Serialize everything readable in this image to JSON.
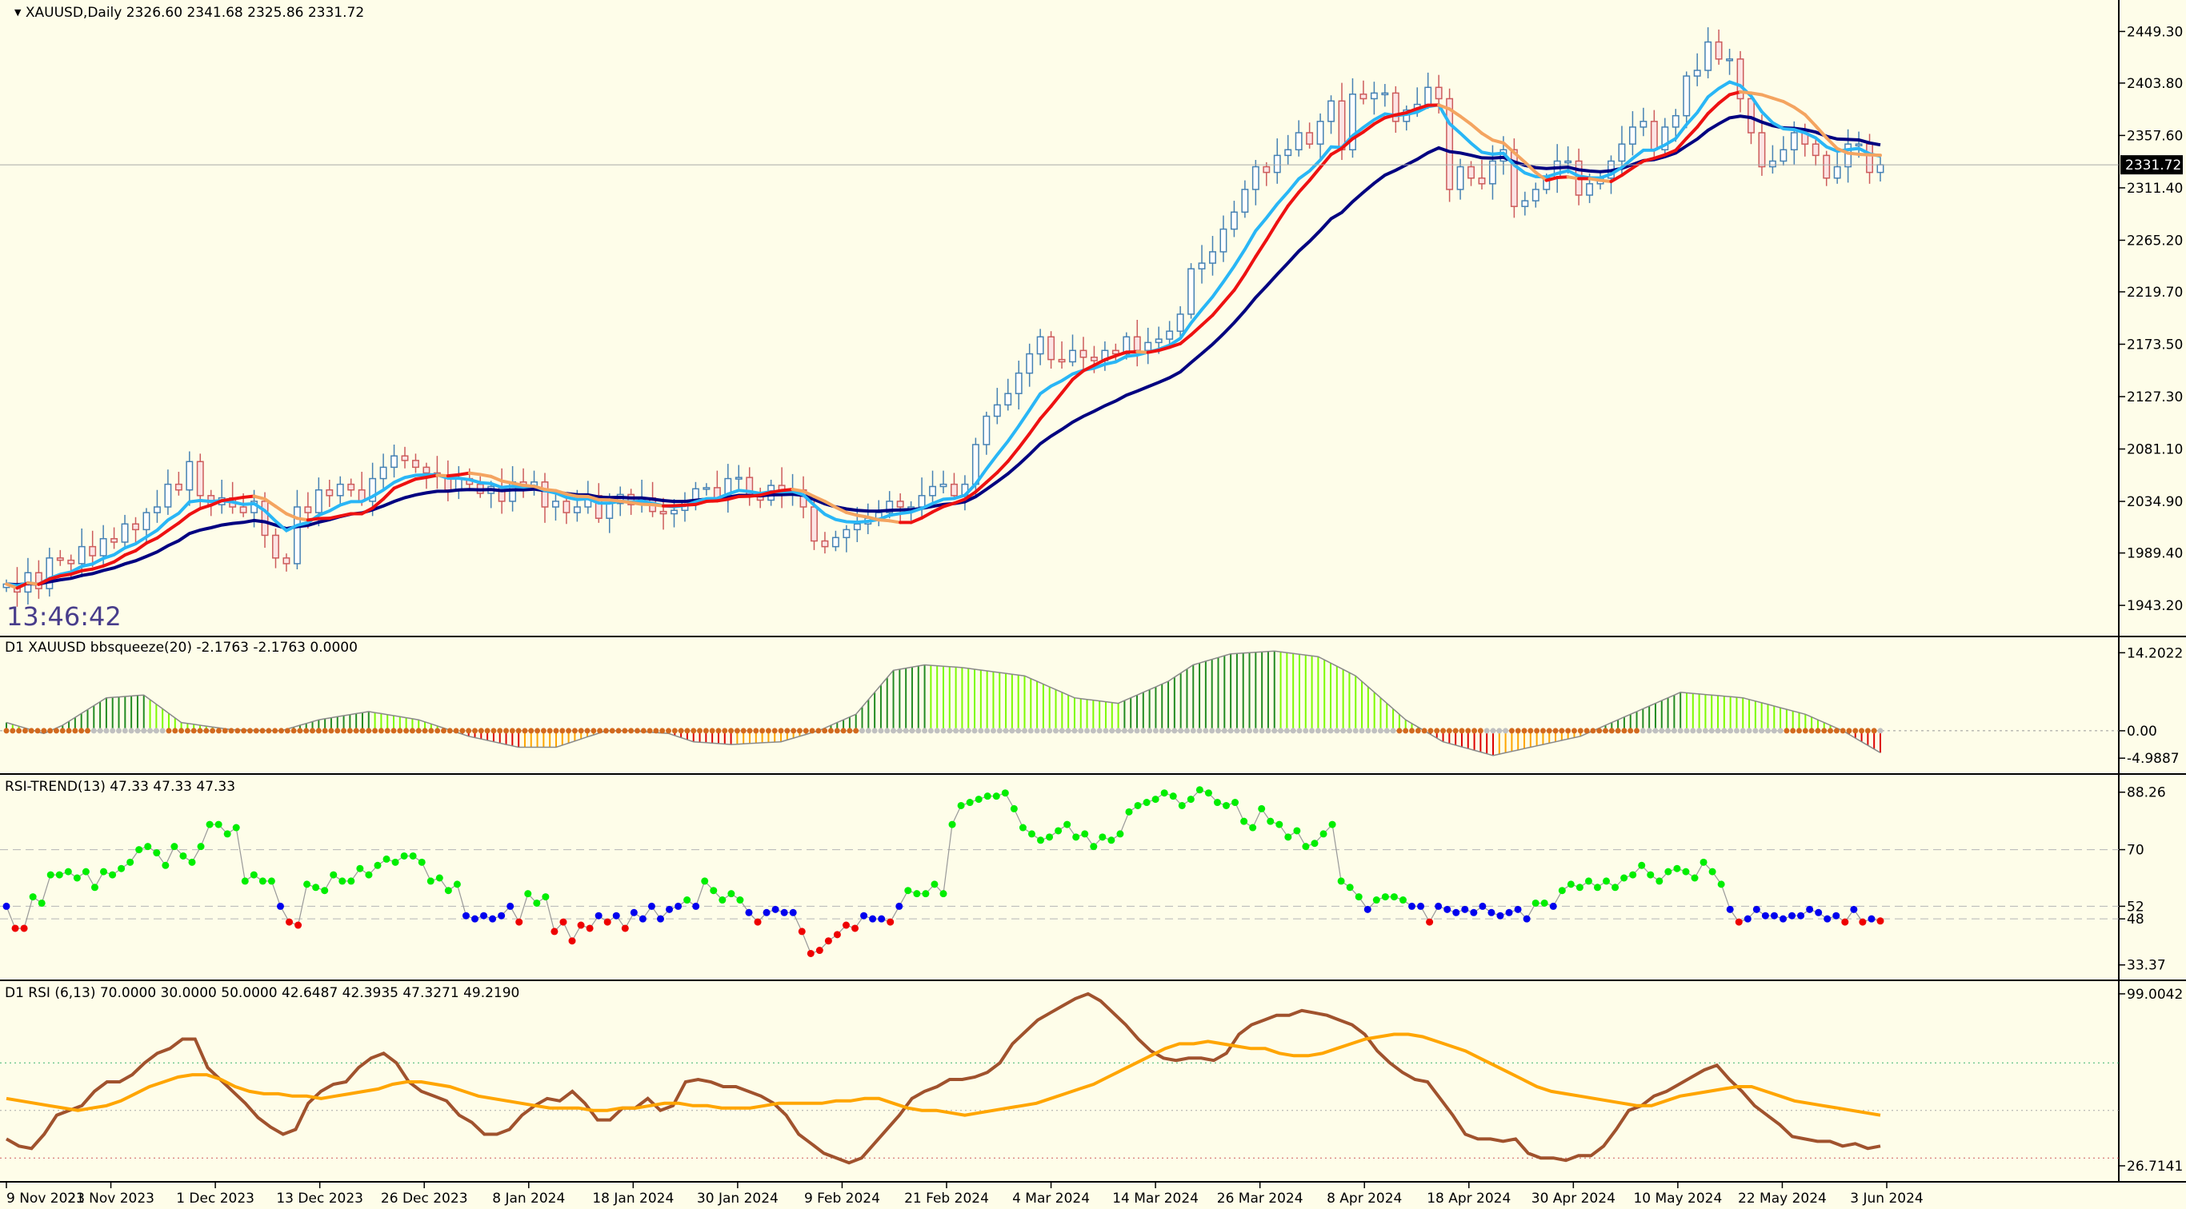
{
  "chart_data": [
    {
      "type": "candlestick",
      "panel": "price",
      "header": "XAUUSD,Daily  2326.60 2341.68 2325.86 2331.72",
      "symbol": "XAUUSD",
      "timeframe": "Daily",
      "ohlc_last": {
        "open": 2326.6,
        "high": 2341.68,
        "low": 2325.86,
        "close": 2331.72
      },
      "current_price_label": "2331.72",
      "clock": "13:46:42",
      "ylim": [
        1920,
        2470
      ],
      "y_ticks": [
        "2449.30",
        "2403.80",
        "2357.60",
        "2311.40",
        "2265.20",
        "2219.70",
        "2173.50",
        "2127.30",
        "2081.10",
        "2034.90",
        "1989.40",
        "1943.20"
      ],
      "closes": [
        1962,
        1955,
        1972,
        1958,
        1985,
        1983,
        1980,
        1995,
        1987,
        2002,
        1999,
        2015,
        2010,
        2025,
        2030,
        2050,
        2045,
        2070,
        2040,
        2032,
        2038,
        2030,
        2025,
        2035,
        2005,
        1985,
        1980,
        2030,
        2025,
        2045,
        2040,
        2050,
        2045,
        2035,
        2055,
        2065,
        2075,
        2071,
        2065,
        2060,
        2058,
        2045,
        2055,
        2050,
        2042,
        2048,
        2035,
        2052,
        2045,
        2052,
        2030,
        2035,
        2025,
        2030,
        2040,
        2020,
        2033,
        2041,
        2032,
        2038,
        2026,
        2024,
        2027,
        2035,
        2046,
        2047,
        2038,
        2055,
        2056,
        2040,
        2036,
        2049,
        2043,
        2045,
        2030,
        2000,
        1995,
        2003,
        2010,
        2015,
        2020,
        2025,
        2035,
        2030,
        2030,
        2040,
        2048,
        2050,
        2040,
        2050,
        2085,
        2110,
        2120,
        2130,
        2148,
        2165,
        2180,
        2160,
        2158,
        2168,
        2162,
        2159,
        2168,
        2165,
        2180,
        2168,
        2175,
        2178,
        2185,
        2200,
        2240,
        2245,
        2255,
        2275,
        2290,
        2310,
        2330,
        2325,
        2340,
        2345,
        2360,
        2350,
        2370,
        2388,
        2345,
        2394,
        2390,
        2395,
        2395,
        2370,
        2380,
        2385,
        2400,
        2390,
        2310,
        2330,
        2320,
        2315,
        2335,
        2345,
        2295,
        2300,
        2310,
        2320,
        2335,
        2335,
        2305,
        2315,
        2320,
        2335,
        2350,
        2365,
        2370,
        2345,
        2365,
        2375,
        2410,
        2415,
        2440,
        2425,
        2425,
        2390,
        2360,
        2330,
        2335,
        2345,
        2360,
        2350,
        2340,
        2320,
        2330,
        2350,
        2350,
        2325,
        2331.72
      ],
      "ema_fast_color": "#29b6f6",
      "ema_slow_color": "#000080",
      "ma_up_color": "#ee1111",
      "ma_down_color": "#f4a460",
      "bull_candle_color": "#4682b4",
      "bear_candle_color": "#cd5c5c"
    },
    {
      "type": "histogram",
      "panel": "bbsqueeze",
      "header": "D1 XAUUSD bbsqueeze(20) -2.1763 -2.1763 0.0000",
      "ylim": [
        -7,
        16
      ],
      "y_ticks": [
        "14.2022",
        "0.00",
        "-4.9887"
      ],
      "anchors": [
        [
          0,
          1.5
        ],
        [
          6,
          -0.5
        ],
        [
          9,
          1
        ],
        [
          16,
          6
        ],
        [
          22,
          6.5
        ],
        [
          28,
          1.5
        ],
        [
          36,
          0.2
        ],
        [
          44,
          0
        ],
        [
          50,
          2
        ],
        [
          58,
          3.5
        ],
        [
          66,
          2
        ],
        [
          74,
          -1
        ],
        [
          82,
          -3
        ],
        [
          88,
          -3
        ],
        [
          96,
          0
        ],
        [
          100,
          0
        ],
        [
          106,
          -0.5
        ],
        [
          110,
          -2
        ],
        [
          116,
          -2.5
        ],
        [
          124,
          -2
        ],
        [
          130,
          0
        ],
        [
          136,
          3
        ],
        [
          142,
          11
        ],
        [
          147,
          12
        ],
        [
          153,
          11.5
        ],
        [
          163,
          10
        ],
        [
          171,
          6
        ],
        [
          178,
          5
        ],
        [
          186,
          9
        ],
        [
          190,
          12
        ],
        [
          196,
          14
        ],
        [
          203,
          14.5
        ],
        [
          210,
          13.5
        ],
        [
          216,
          10
        ],
        [
          224,
          2
        ],
        [
          230,
          -2
        ],
        [
          238,
          -4.5
        ],
        [
          244,
          -3
        ],
        [
          252,
          -1
        ],
        [
          260,
          3
        ],
        [
          268,
          7
        ],
        [
          278,
          6
        ],
        [
          288,
          3
        ],
        [
          294,
          0
        ],
        [
          300,
          -4
        ]
      ]
    },
    {
      "type": "line_dots",
      "panel": "rsi_trend",
      "header": "RSI-TREND(13) 47.33 47.33 47.33",
      "ylim": [
        30,
        92
      ],
      "y_ticks": [
        "88.26",
        "70",
        "52",
        "48",
        "33.37"
      ],
      "level_lines": [
        70,
        52,
        48
      ],
      "colors": {
        "up": "#00ee00",
        "down": "#ee0000",
        "neutral": "#0000ee"
      },
      "values": [
        52,
        45,
        45,
        55,
        53,
        62,
        62,
        63,
        61,
        63,
        58,
        63,
        62,
        64,
        66,
        70,
        71,
        69,
        65,
        71,
        68,
        66,
        71,
        78,
        78,
        75,
        77,
        60,
        62,
        60,
        60,
        52,
        47,
        46,
        59,
        58,
        57,
        62,
        60,
        60,
        64,
        62,
        65,
        67,
        66,
        68,
        68,
        66,
        60,
        61,
        57,
        59,
        49,
        48,
        49,
        48,
        49,
        52,
        47,
        56,
        53,
        55,
        44,
        47,
        41,
        46,
        45,
        49,
        47,
        49,
        45,
        50,
        48,
        52,
        48,
        51,
        52,
        54,
        52,
        60,
        57,
        54,
        56,
        54,
        50,
        47,
        50,
        51,
        50,
        50,
        44,
        37,
        38,
        41,
        43,
        46,
        45,
        49,
        48,
        48,
        47,
        52,
        57,
        56,
        56,
        59,
        56,
        78,
        84,
        85,
        86,
        87,
        87,
        88,
        83,
        77,
        75,
        73,
        74,
        76,
        78,
        74,
        75,
        71,
        74,
        73,
        75,
        82,
        84,
        85,
        86,
        88,
        87,
        84,
        86,
        89,
        88,
        85,
        84,
        85,
        79,
        77,
        83,
        79,
        78,
        74,
        76,
        71,
        72,
        75,
        78,
        60,
        58,
        55,
        51,
        54,
        55,
        55,
        54,
        52,
        52,
        47,
        52,
        51,
        50,
        51,
        50,
        52,
        50,
        49,
        50,
        51,
        48,
        53,
        53,
        52,
        57,
        59,
        58,
        60,
        58,
        60,
        58,
        61,
        62,
        65,
        62,
        60,
        63,
        64,
        63,
        61,
        66,
        63,
        59,
        51,
        47,
        48,
        51,
        49,
        49,
        48,
        49,
        49,
        51,
        50,
        48,
        49,
        47,
        51,
        47,
        48,
        47.33
      ]
    },
    {
      "type": "line",
      "panel": "rsi",
      "header": "D1 RSI  (6,13) 70.0000 30.0000 50.0000 42.6487 42.3935 47.3271 49.2190",
      "ylim": [
        22,
        102
      ],
      "y_ticks": [
        "99.0042",
        "26.7141"
      ],
      "level_lines": [
        70,
        50,
        30
      ],
      "series": [
        {
          "color": "#a0522d",
          "values": [
            38,
            35,
            34,
            40,
            48,
            50,
            52,
            58,
            62,
            62,
            65,
            70,
            74,
            76,
            80,
            80,
            68,
            63,
            58,
            53,
            47,
            43,
            40,
            42,
            53,
            58,
            61,
            62,
            68,
            72,
            74,
            70,
            62,
            58,
            56,
            54,
            48,
            45,
            40,
            40,
            42,
            48,
            52,
            55,
            54,
            58,
            53,
            46,
            46,
            51,
            51,
            55,
            50,
            52,
            62,
            63,
            62,
            60,
            60,
            58,
            56,
            53,
            48,
            40,
            36,
            32,
            30,
            28,
            30,
            36,
            42,
            48,
            55,
            58,
            60,
            63,
            63,
            64,
            66,
            70,
            78,
            83,
            88,
            91,
            94,
            97,
            99,
            96,
            91,
            86,
            80,
            75,
            72,
            71,
            72,
            72,
            71,
            74,
            82,
            86,
            88,
            90,
            90,
            92,
            91,
            90,
            88,
            86,
            82,
            75,
            70,
            66,
            63,
            62,
            55,
            48,
            40,
            38,
            38,
            37,
            38,
            32,
            30,
            30,
            29,
            31,
            31,
            35,
            42,
            50,
            52,
            56,
            58,
            61,
            64,
            67,
            69,
            63,
            58,
            52,
            48,
            44,
            39,
            38,
            37,
            37,
            35,
            36,
            34,
            35
          ]
        },
        {
          "color": "#ffa500",
          "values": [
            55,
            54,
            53,
            52,
            51,
            50,
            51,
            52,
            54,
            57,
            60,
            62,
            64,
            65,
            65,
            63,
            60,
            58,
            57,
            57,
            56,
            56,
            55,
            56,
            57,
            58,
            59,
            61,
            62,
            62,
            61,
            60,
            58,
            56,
            55,
            54,
            53,
            52,
            51,
            51,
            51,
            50,
            50,
            51,
            51,
            52,
            53,
            53,
            52,
            52,
            51,
            51,
            51,
            52,
            53,
            53,
            53,
            53,
            54,
            54,
            55,
            55,
            53,
            51,
            50,
            50,
            49,
            48,
            49,
            50,
            51,
            52,
            53,
            55,
            57,
            59,
            61,
            64,
            67,
            70,
            73,
            76,
            78,
            78,
            79,
            78,
            77,
            76,
            76,
            74,
            73,
            73,
            74,
            76,
            78,
            80,
            81,
            82,
            82,
            81,
            79,
            77,
            75,
            72,
            69,
            66,
            63,
            60,
            58,
            57,
            56,
            55,
            54,
            53,
            52,
            52,
            54,
            56,
            57,
            58,
            59,
            60,
            60,
            58,
            56,
            54,
            53,
            52,
            51,
            50,
            49,
            48
          ]
        }
      ]
    }
  ],
  "x_axis": {
    "labels": [
      "9 Nov 2023",
      "21 Nov 2023",
      "1 Dec 2023",
      "13 Dec 2023",
      "26 Dec 2023",
      "8 Jan 2024",
      "18 Jan 2024",
      "30 Jan 2024",
      "9 Feb 2024",
      "21 Feb 2024",
      "4 Mar 2024",
      "14 Mar 2024",
      "26 Mar 2024",
      "8 Apr 2024",
      "18 Apr 2024",
      "30 Apr 2024",
      "10 May 2024",
      "22 May 2024",
      "3 Jun 2024"
    ]
  },
  "colors": {
    "background": "#fefde9",
    "grid": "#b0b0b0",
    "separator": "#000000",
    "text": "#000000",
    "clock": "#483d8b"
  }
}
